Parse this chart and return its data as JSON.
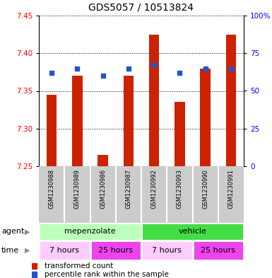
{
  "title": "GDS5057 / 10513824",
  "samples": [
    "GSM1230988",
    "GSM1230989",
    "GSM1230986",
    "GSM1230987",
    "GSM1230992",
    "GSM1230993",
    "GSM1230990",
    "GSM1230991"
  ],
  "red_values": [
    7.345,
    7.37,
    7.265,
    7.37,
    7.425,
    7.335,
    7.38,
    7.425
  ],
  "blue_values": [
    62,
    65,
    60,
    65,
    67,
    62,
    65,
    65
  ],
  "y_min": 7.25,
  "y_max": 7.45,
  "y_ticks": [
    7.25,
    7.3,
    7.35,
    7.4,
    7.45
  ],
  "right_y_ticks": [
    0,
    25,
    50,
    75,
    100
  ],
  "bar_color": "#cc2200",
  "dot_color": "#2255cc",
  "agent_label": "agent",
  "time_label": "time",
  "agent_groups": [
    {
      "label": "mepenzolate",
      "start": 0,
      "end": 4,
      "color": "#bbffbb"
    },
    {
      "label": "vehicle",
      "start": 4,
      "end": 8,
      "color": "#44dd44"
    }
  ],
  "time_groups": [
    {
      "label": "7 hours",
      "start": 0,
      "end": 2,
      "color": "#ffccff"
    },
    {
      "label": "25 hours",
      "start": 2,
      "end": 4,
      "color": "#ee44ee"
    },
    {
      "label": "7 hours",
      "start": 4,
      "end": 6,
      "color": "#ffccff"
    },
    {
      "label": "25 hours",
      "start": 6,
      "end": 8,
      "color": "#ee44ee"
    }
  ],
  "legend_red": "transformed count",
  "legend_blue": "percentile rank within the sample",
  "bar_width": 0.4
}
